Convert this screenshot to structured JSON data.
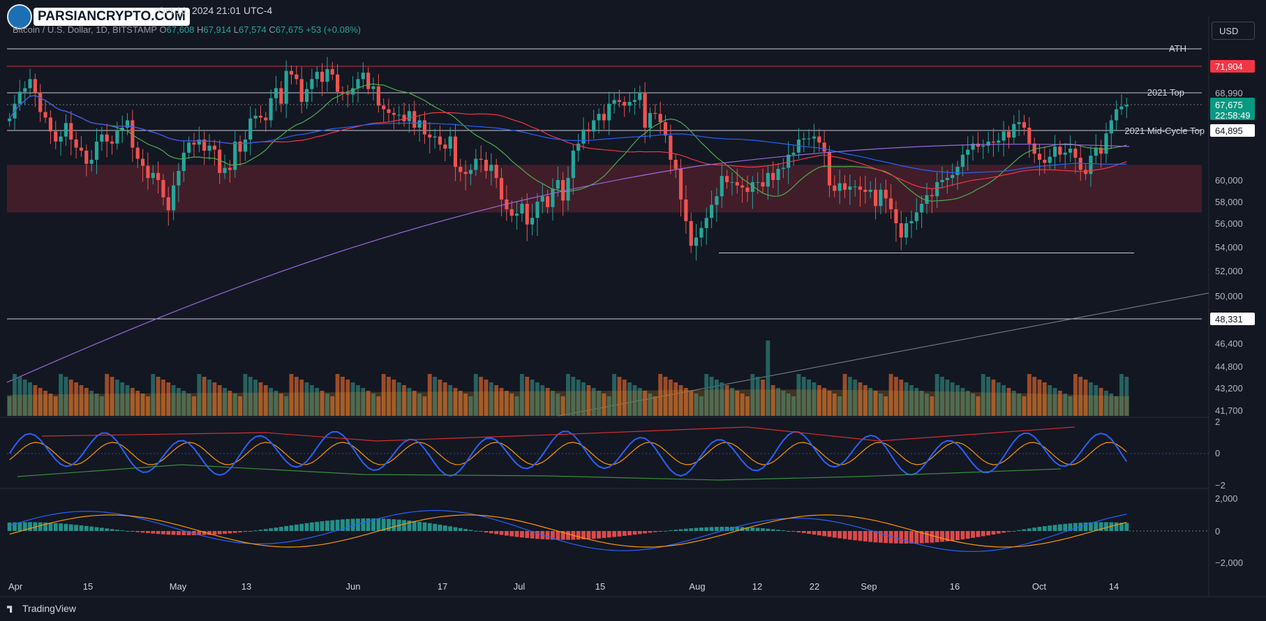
{
  "header": {
    "brand": "PARSIANCRYPTO.COM",
    "datetime": "Oct 16, 2024 21:01 UTC-4",
    "symbol": "Bitcoin / U.S. Dollar, 1D, BITSTAMP",
    "open_label": "O",
    "open": "67,608",
    "high_label": "H",
    "high": "67,914",
    "low_label": "L",
    "low": "67,574",
    "close_label": "C",
    "close": "67,675",
    "change": "+53 (+0.08%)",
    "currency": "USD"
  },
  "footer": {
    "brand": "TradingView"
  },
  "colors": {
    "bg": "#131722",
    "up": "#26a69a",
    "down": "#ef5350",
    "zone": "#4a1f2b",
    "ath_tag": "#f23645"
  },
  "chart_data": {
    "type": "candlestick",
    "x_ticks": [
      "Apr",
      "15",
      "May",
      "13",
      "Jun",
      "17",
      "Jul",
      "15",
      "Aug",
      "12",
      "22",
      "Sep",
      "16",
      "Oct",
      "14"
    ],
    "y_ticks": [
      "60,000",
      "58,000",
      "56,000",
      "54,000",
      "52,000",
      "50,000",
      "46,400",
      "44,800",
      "43,200",
      "41,700"
    ],
    "price_tags": [
      {
        "value": "71,904",
        "label": "",
        "color": "#f23645"
      },
      {
        "value": "67,675",
        "sub": "22:58:49",
        "color": "#089981"
      },
      {
        "value": "64,895",
        "label": "2021 Mid-Cycle Top",
        "color": "#ffffff"
      },
      {
        "value": "48,331",
        "label": "",
        "color": "#ffffff"
      },
      {
        "value": "68,990",
        "label": "2021 Top",
        "color": "#ffffff"
      }
    ],
    "levels": {
      "ath_label": "ATH",
      "ath": 73800,
      "top2021": 68990,
      "top2021_label": "2021 Top",
      "midcycle": 64895,
      "midcycle_label": "2021 Mid-Cycle Top",
      "low": 48331,
      "support": 53500
    },
    "zone": [
      57000,
      61500
    ],
    "close_series": [
      66200,
      67800,
      69100,
      69500,
      70500,
      69000,
      66900,
      66300,
      64800,
      63800,
      64300,
      65700,
      64000,
      63200,
      62900,
      61600,
      62000,
      63800,
      64500,
      63800,
      63600,
      64900,
      65200,
      66000,
      63200,
      62100,
      61400,
      60200,
      60700,
      60000,
      58400,
      57200,
      59500,
      60900,
      62700,
      63700,
      63500,
      64000,
      62900,
      63400,
      63000,
      60700,
      61200,
      61000,
      63800,
      62800,
      64000,
      66200,
      66500,
      66300,
      66000,
      68400,
      69500,
      67800,
      71400,
      71000,
      70500,
      68000,
      69400,
      70500,
      71300,
      70200,
      71600,
      71000,
      69100,
      68900,
      68800,
      69500,
      70500,
      71200,
      69400,
      69700,
      67600,
      67200,
      66800,
      66600,
      66600,
      65900,
      67000,
      65200,
      66000,
      64500,
      64200,
      64300,
      63500,
      63100,
      64300,
      61300,
      60800,
      60600,
      61000,
      62100,
      62000,
      60900,
      61500,
      60200,
      58200,
      57300,
      56700,
      56900,
      57800,
      55900,
      56500,
      58000,
      58500,
      57500,
      59200,
      60000,
      58100,
      60200,
      62900,
      63600,
      65000,
      64800,
      66000,
      66700,
      66000,
      67800,
      68200,
      68000,
      67600,
      68000,
      68200,
      69000,
      65200,
      66800,
      66700,
      65800,
      64400,
      62000,
      61100,
      58200,
      56200,
      54100,
      54800,
      55600,
      56500,
      57700,
      58500,
      60400,
      59800,
      59800,
      59500,
      59300,
      58900,
      59800,
      59800,
      59400,
      60700,
      60000,
      61100,
      61200,
      62500,
      62700,
      64000,
      64100,
      64100,
      64300,
      63700,
      62800,
      59500,
      59000,
      59700,
      59100,
      59400,
      59400,
      59100,
      58900,
      59100,
      57600,
      59100,
      58300,
      57300,
      56000,
      54800,
      56000,
      56200,
      57000,
      57800,
      58600,
      58500,
      59800,
      60000,
      60200,
      60500,
      61300,
      62500,
      63000,
      63600,
      63300,
      63400,
      63800,
      63700,
      63900,
      64800,
      64200,
      65600,
      65800,
      65200,
      63600,
      62600,
      62000,
      61700,
      62300,
      63300,
      62500,
      62700,
      63100,
      62200,
      61000,
      60600,
      62400,
      63200,
      62600,
      64600,
      66000,
      67200,
      67500,
      67675
    ],
    "volume_note": "volume bars up=teal down=orange",
    "osc1_ticks": [
      "2",
      "0",
      "−2"
    ],
    "osc2_ticks": [
      "2,000",
      "0",
      "−2,000"
    ]
  }
}
